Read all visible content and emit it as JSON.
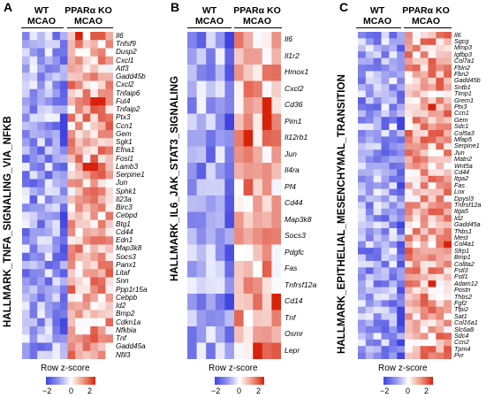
{
  "color_scale": {
    "low": "#3f43e0",
    "mid": "#ffffff",
    "high": "#d8230b",
    "min": -2,
    "max": 2
  },
  "panels": [
    {
      "letter": "A",
      "pathway": "HALLMARK_TNFA_SIGNALING_VIA_NFKB",
      "groups": [
        {
          "genotype": "WT",
          "condition": "MCAO"
        },
        {
          "genotype": "PPARα KO",
          "condition": "MCAO"
        }
      ],
      "genes": [
        "Il6",
        "Tnfsf9",
        "Dusp2",
        "Cxcl1",
        "Atf3",
        "Gadd45b",
        "Cxcl2",
        "Tnfaip6",
        "Fut4",
        "Tnfaip2",
        "Ptx3",
        "Ccn1",
        "Gem",
        "Sgk1",
        "Efna1",
        "Fosl1",
        "Lamb3",
        "Serpine1",
        "Jun",
        "Sphk1",
        "Il23a",
        "Birc3",
        "Cebpd",
        "Btg1",
        "Cd44",
        "Edn1",
        "Map3k8",
        "Socs3",
        "Panx1",
        "Litaf",
        "Snn",
        "Ppp1r15a",
        "Cebpb",
        "Id2",
        "Bmp2",
        "Cdkn1a",
        "Nfkbia",
        "Tnf",
        "Gadd45a",
        "Nfil3"
      ],
      "legend": {
        "title": "Row z-score",
        "ticks": [
          "−2",
          "0",
          "2"
        ]
      }
    },
    {
      "letter": "B",
      "pathway": "HALLMARK_IL6_JAK_STAT3_SIGNALING",
      "groups": [
        {
          "genotype": "WT",
          "condition": "MCAO"
        },
        {
          "genotype": "PPARα KO",
          "condition": "MCAO"
        }
      ],
      "genes": [
        "Il6",
        "Il1r2",
        "Hmox1",
        "Cxcl2",
        "Cd36",
        "Pim1",
        "Il12rb1",
        "Jun",
        "Il4ra",
        "Pf4",
        "Cd44",
        "Map3k8",
        "Socs3",
        "Pdgfc",
        "Fas",
        "Tnfrsf12a",
        "Cd14",
        "Tnf",
        "Osmr",
        "Lepr"
      ],
      "legend": {
        "title": "Row z-score",
        "ticks": [
          "−2",
          "0",
          "2"
        ]
      }
    },
    {
      "letter": "C",
      "pathway": "HALLMARK_EPITHELIAL_MESENCHYMAL_TRANSITION",
      "groups": [
        {
          "genotype": "WT",
          "condition": "MCAO"
        },
        {
          "genotype": "PPARα KO",
          "condition": "MCAO"
        }
      ],
      "genes": [
        "Il6",
        "Sgcg",
        "Mmp3",
        "Igfbp3",
        "Col7a1",
        "Fbln2",
        "Fbn2",
        "Gadd45b",
        "Sntb1",
        "Timp1",
        "Grem1",
        "Ptx3",
        "Ccn1",
        "Gem",
        "Sdc1",
        "Col5a3",
        "Mfap5",
        "Serpine1",
        "Jun",
        "Matn2",
        "Wnt5a",
        "Cd44",
        "Itga2",
        "Fas",
        "Lox",
        "Dpysl3",
        "Tnfrsf12a",
        "Itga5",
        "Id2",
        "Gadd45a",
        "Thbs1",
        "Mest",
        "Col4a1",
        "Sfrp1",
        "Bmp1",
        "Col8a2",
        "Fstl3",
        "Fstl1",
        "Adam12",
        "Postn",
        "Thbs2",
        "Fgf2",
        "Tfpi2",
        "Sat1",
        "Col16a1",
        "Slc6a8",
        "Sdc4",
        "Ccn2",
        "Tpm4",
        "Pvr"
      ],
      "legend": {
        "title": "Row z-score",
        "ticks": [
          "−2",
          "0",
          "2"
        ]
      }
    }
  ]
}
